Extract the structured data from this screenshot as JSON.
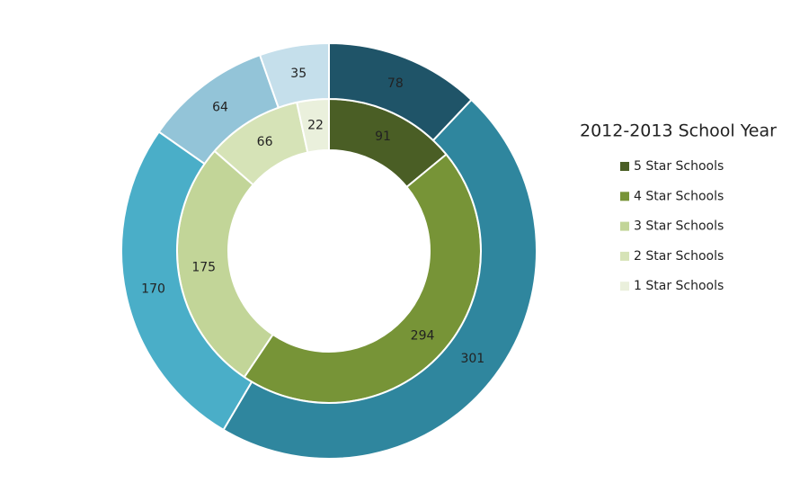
{
  "chart_data": {
    "type": "donut",
    "legend_title": "2012-2013 School Year",
    "categories": [
      "5 Star Schools",
      "4 Star Schools",
      "3 Star Schools",
      "2 Star Schools",
      "1 Star Schools"
    ],
    "series": [
      {
        "values": [
          91,
          294,
          175,
          66,
          22
        ],
        "colors": [
          "#4a5e25",
          "#779437",
          "#c2d598",
          "#d6e3b7",
          "#eaf0dc"
        ]
      },
      {
        "values": [
          78,
          301,
          170,
          64,
          35
        ],
        "colors": [
          "#1f5468",
          "#2f869e",
          "#4aaec8",
          "#93c4d8",
          "#c5dfeb"
        ]
      }
    ],
    "legend": "right"
  }
}
